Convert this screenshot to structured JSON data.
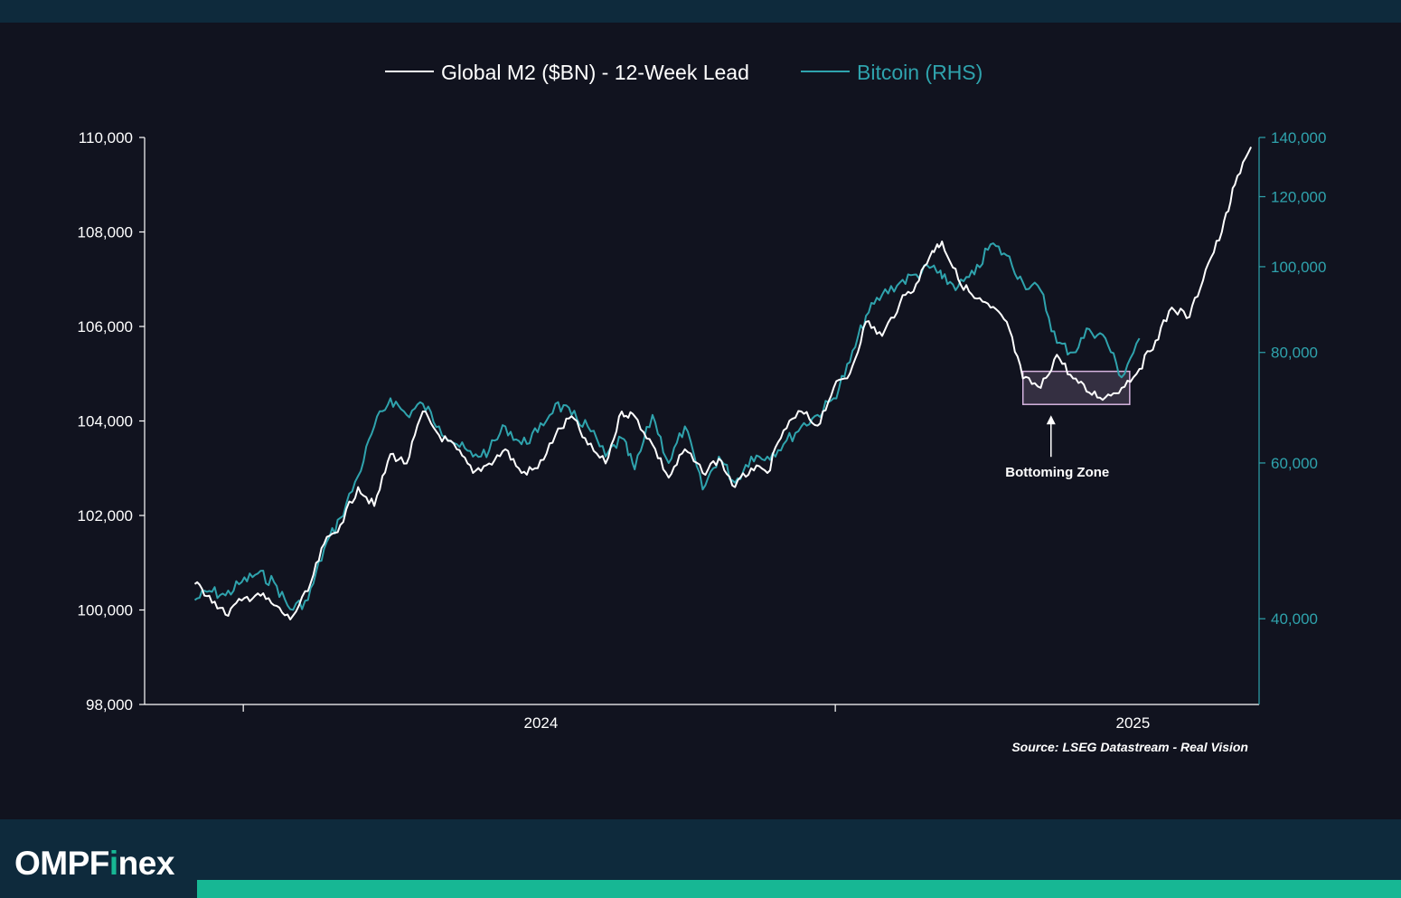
{
  "chart_data": {
    "type": "line",
    "x_range": [
      "2023-06",
      "2025-03"
    ],
    "x_ticks": [
      "2024",
      "2025"
    ],
    "y_left": {
      "ticks": [
        "98,000",
        "100,000",
        "102,000",
        "104,000",
        "106,000",
        "108,000",
        "110,000"
      ],
      "range": [
        98000,
        110000
      ]
    },
    "y_right": {
      "scale": "log",
      "ticks": [
        "40,000",
        "60,000",
        "80,000",
        "100,000",
        "120,000",
        "140,000"
      ],
      "range": [
        32000,
        140000
      ]
    },
    "series": [
      {
        "name": "Global M2 ($BN) - 12-Week Lead",
        "axis": "left",
        "color": "#ffffff",
        "points": [
          [
            "2023-06-01",
            100550
          ],
          [
            "2023-06-10",
            100300
          ],
          [
            "2023-06-20",
            99900
          ],
          [
            "2023-06-30",
            100200
          ],
          [
            "2023-07-10",
            100350
          ],
          [
            "2023-07-20",
            100100
          ],
          [
            "2023-07-30",
            99800
          ],
          [
            "2023-08-10",
            100400
          ],
          [
            "2023-08-20",
            101400
          ],
          [
            "2023-08-30",
            101800
          ],
          [
            "2023-09-10",
            102600
          ],
          [
            "2023-09-20",
            102200
          ],
          [
            "2023-09-30",
            103300
          ],
          [
            "2023-10-10",
            103100
          ],
          [
            "2023-10-20",
            104200
          ],
          [
            "2023-10-30",
            103700
          ],
          [
            "2023-11-10",
            103400
          ],
          [
            "2023-11-20",
            102900
          ],
          [
            "2023-11-30",
            103100
          ],
          [
            "2023-12-10",
            103400
          ],
          [
            "2023-12-20",
            102900
          ],
          [
            "2023-12-30",
            103000
          ],
          [
            "2024-01-10",
            103700
          ],
          [
            "2024-01-20",
            104100
          ],
          [
            "2024-01-30",
            103500
          ],
          [
            "2024-02-10",
            103100
          ],
          [
            "2024-02-20",
            104200
          ],
          [
            "2024-02-28",
            104100
          ],
          [
            "2024-03-10",
            103500
          ],
          [
            "2024-03-20",
            102800
          ],
          [
            "2024-03-30",
            103400
          ],
          [
            "2024-04-10",
            102900
          ],
          [
            "2024-04-20",
            103200
          ],
          [
            "2024-04-30",
            102600
          ],
          [
            "2024-05-10",
            103000
          ],
          [
            "2024-05-20",
            102900
          ],
          [
            "2024-05-30",
            103800
          ],
          [
            "2024-06-10",
            104200
          ],
          [
            "2024-06-20",
            103900
          ],
          [
            "2024-06-30",
            104700
          ],
          [
            "2024-07-10",
            105000
          ],
          [
            "2024-07-20",
            106100
          ],
          [
            "2024-07-30",
            105800
          ],
          [
            "2024-08-10",
            106500
          ],
          [
            "2024-08-20",
            106900
          ],
          [
            "2024-08-30",
            107600
          ],
          [
            "2024-09-05",
            107800
          ],
          [
            "2024-09-15",
            107000
          ],
          [
            "2024-09-25",
            106600
          ],
          [
            "2024-10-05",
            106400
          ],
          [
            "2024-10-15",
            106100
          ],
          [
            "2024-10-25",
            104900
          ],
          [
            "2024-11-05",
            104700
          ],
          [
            "2024-11-15",
            105400
          ],
          [
            "2024-11-25",
            104900
          ],
          [
            "2024-12-05",
            104600
          ],
          [
            "2024-12-15",
            104500
          ],
          [
            "2024-12-25",
            104700
          ],
          [
            "2025-01-05",
            105100
          ],
          [
            "2025-01-15",
            105700
          ],
          [
            "2025-01-25",
            106400
          ],
          [
            "2025-02-05",
            106200
          ],
          [
            "2025-02-15",
            107200
          ],
          [
            "2025-02-25",
            108000
          ],
          [
            "2025-03-05",
            109000
          ],
          [
            "2025-03-15",
            109800
          ]
        ]
      },
      {
        "name": "Bitcoin (RHS)",
        "axis": "right",
        "color": "#2fa3ad",
        "points": [
          [
            "2023-06-01",
            42000
          ],
          [
            "2023-06-10",
            43000
          ],
          [
            "2023-06-20",
            42500
          ],
          [
            "2023-06-30",
            44000
          ],
          [
            "2023-07-10",
            45000
          ],
          [
            "2023-07-20",
            44000
          ],
          [
            "2023-07-30",
            41000
          ],
          [
            "2023-08-10",
            42000
          ],
          [
            "2023-08-20",
            48000
          ],
          [
            "2023-08-30",
            52000
          ],
          [
            "2023-09-10",
            58000
          ],
          [
            "2023-09-20",
            66000
          ],
          [
            "2023-09-30",
            71000
          ],
          [
            "2023-10-10",
            68000
          ],
          [
            "2023-10-20",
            70000
          ],
          [
            "2023-10-30",
            66000
          ],
          [
            "2023-11-10",
            63000
          ],
          [
            "2023-11-20",
            61000
          ],
          [
            "2023-11-30",
            62000
          ],
          [
            "2023-12-10",
            66000
          ],
          [
            "2023-12-20",
            63000
          ],
          [
            "2023-12-30",
            65000
          ],
          [
            "2024-01-10",
            70000
          ],
          [
            "2024-01-20",
            68000
          ],
          [
            "2024-01-30",
            66000
          ],
          [
            "2024-02-10",
            61000
          ],
          [
            "2024-02-20",
            64000
          ],
          [
            "2024-02-28",
            59000
          ],
          [
            "2024-03-10",
            68000
          ],
          [
            "2024-03-20",
            60000
          ],
          [
            "2024-03-30",
            66000
          ],
          [
            "2024-04-10",
            56000
          ],
          [
            "2024-04-20",
            61000
          ],
          [
            "2024-04-30",
            57000
          ],
          [
            "2024-05-10",
            61000
          ],
          [
            "2024-05-20",
            61000
          ],
          [
            "2024-05-30",
            63000
          ],
          [
            "2024-06-10",
            66000
          ],
          [
            "2024-06-20",
            68000
          ],
          [
            "2024-06-30",
            71000
          ],
          [
            "2024-07-10",
            78000
          ],
          [
            "2024-07-20",
            88000
          ],
          [
            "2024-07-30",
            93000
          ],
          [
            "2024-08-10",
            96000
          ],
          [
            "2024-08-20",
            98000
          ],
          [
            "2024-08-30",
            100000
          ],
          [
            "2024-09-05",
            97000
          ],
          [
            "2024-09-15",
            95000
          ],
          [
            "2024-09-25",
            98000
          ],
          [
            "2024-10-05",
            106000
          ],
          [
            "2024-10-15",
            103000
          ],
          [
            "2024-10-25",
            96000
          ],
          [
            "2024-11-05",
            94000
          ],
          [
            "2024-11-15",
            82000
          ],
          [
            "2024-11-25",
            80000
          ],
          [
            "2024-12-05",
            85000
          ],
          [
            "2024-12-15",
            83000
          ],
          [
            "2024-12-25",
            75000
          ],
          [
            "2025-01-05",
            83000
          ]
        ]
      }
    ],
    "annotations": [
      {
        "type": "box",
        "label": "Bottoming Zone",
        "x_range": [
          "2024-10-25",
          "2024-12-30"
        ],
        "y_range": [
          104350,
          105050
        ],
        "axis": "left",
        "color": "#d6b4e0"
      }
    ],
    "source": "Source: LSEG Datastream - Real Vision",
    "grid": false,
    "legend_position": "top-center"
  },
  "branding": {
    "logo_prefix": "OMPF",
    "logo_i": "i",
    "logo_suffix": "nex",
    "accent": "#17b794",
    "bar_color": "#0e2a3c",
    "background": "#11131f"
  }
}
